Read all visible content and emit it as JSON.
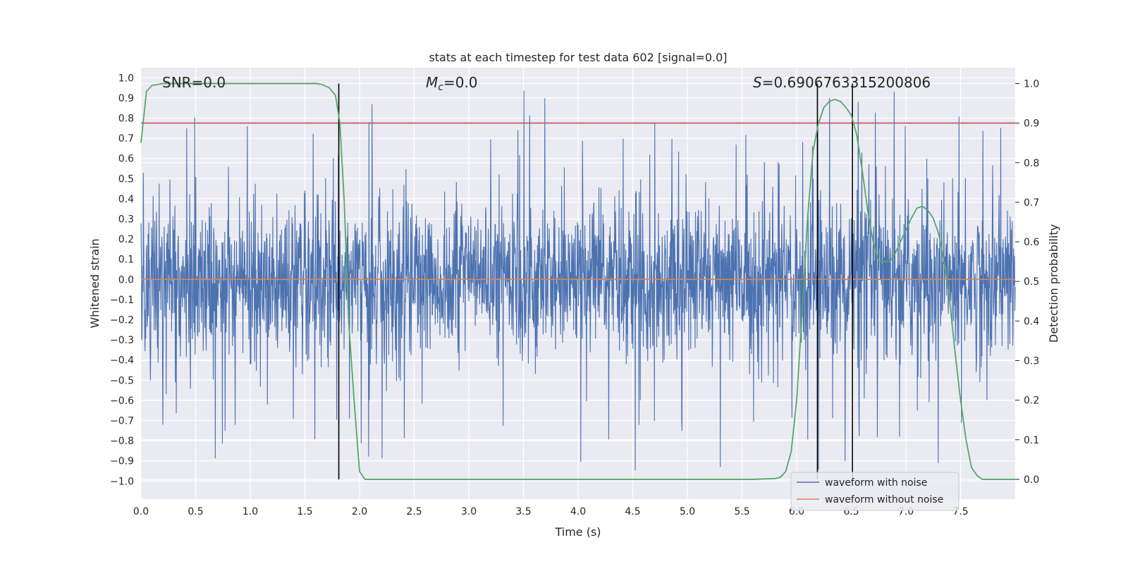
{
  "chart_data": {
    "type": "line",
    "title": "stats at each timestep for test data 602 [signal=0.0]",
    "xlabel": "Time (s)",
    "ylabel_left": "Whitened strain",
    "ylabel_right": "Detection probability",
    "xlim": [
      0.0,
      8.0
    ],
    "ylim_left": [
      -1.09,
      1.05
    ],
    "ylim_right": [
      -0.05,
      1.04
    ],
    "xticks": [
      "0.0",
      "0.5",
      "1.0",
      "1.5",
      "2.0",
      "2.5",
      "3.0",
      "3.5",
      "4.0",
      "4.5",
      "5.0",
      "5.5",
      "6.0",
      "6.5",
      "7.0",
      "7.5"
    ],
    "yticks_left": [
      "1.0",
      "0.9",
      "0.8",
      "0.7",
      "0.6",
      "0.5",
      "0.4",
      "0.3",
      "0.2",
      "0.1",
      "0.0",
      "-0.1",
      "-0.2",
      "-0.3",
      "-0.4",
      "-0.5",
      "-0.6",
      "-0.7",
      "-0.8",
      "-0.9",
      "-1.0"
    ],
    "yticks_right": [
      "1.0",
      "0.9",
      "0.8",
      "0.7",
      "0.6",
      "0.5",
      "0.4",
      "0.3",
      "0.2",
      "0.1",
      "0.0"
    ],
    "grid": true,
    "legend_position": "bottom-right",
    "annotations": {
      "snr": "SNR=0.0",
      "mc_symbol": "M",
      "mc_sub": "c",
      "mc_value": "=0.0",
      "s_symbol": "S",
      "s_value": "=0.6906763315200806"
    },
    "series": [
      {
        "name": "waveform with noise",
        "color": "#4c72b0",
        "axis": "left",
        "noise_band": [
          -0.55,
          0.55
        ],
        "peak_range": [
          -1.0,
          0.96
        ]
      },
      {
        "name": "waveform without noise",
        "color": "#dd8452",
        "axis": "left",
        "y": 0.0
      },
      {
        "axis": "right",
        "color": "#55a868",
        "x": [
          0.0,
          0.05,
          0.1,
          0.2,
          0.4,
          0.8,
          1.2,
          1.5,
          1.6,
          1.65,
          1.72,
          1.78,
          1.82,
          1.86,
          1.9,
          1.95,
          2.0,
          2.05,
          2.1,
          2.5,
          3.0,
          4.0,
          5.0,
          5.6,
          5.8,
          5.85,
          5.9,
          5.95,
          6.0,
          6.05,
          6.1,
          6.15,
          6.2,
          6.25,
          6.3,
          6.35,
          6.4,
          6.45,
          6.5,
          6.55,
          6.6,
          6.65,
          6.7,
          6.75,
          6.8,
          6.85,
          6.9,
          6.95,
          7.0,
          7.05,
          7.1,
          7.15,
          7.2,
          7.25,
          7.3,
          7.35,
          7.4,
          7.45,
          7.5,
          7.55,
          7.6,
          7.65,
          7.7,
          7.8,
          8.0
        ],
        "y": [
          0.85,
          0.98,
          0.995,
          1.0,
          1.0,
          1.0,
          1.0,
          1.0,
          1.0,
          0.998,
          0.99,
          0.97,
          0.9,
          0.7,
          0.4,
          0.2,
          0.02,
          0.0,
          0.0,
          0.0,
          0.0,
          0.0,
          0.0,
          0.0,
          0.002,
          0.005,
          0.02,
          0.07,
          0.2,
          0.42,
          0.66,
          0.83,
          0.9,
          0.94,
          0.955,
          0.96,
          0.955,
          0.94,
          0.92,
          0.87,
          0.78,
          0.68,
          0.6,
          0.55,
          0.55,
          0.55,
          0.57,
          0.6,
          0.63,
          0.66,
          0.685,
          0.69,
          0.68,
          0.66,
          0.62,
          0.55,
          0.45,
          0.32,
          0.2,
          0.1,
          0.03,
          0.01,
          0.0,
          0.0,
          0.0
        ]
      }
    ],
    "threshold_line": {
      "axis": "right",
      "y": 0.9,
      "color": "#c44e52"
    },
    "vertical_lines": [
      1.81,
      6.19,
      6.51
    ]
  }
}
